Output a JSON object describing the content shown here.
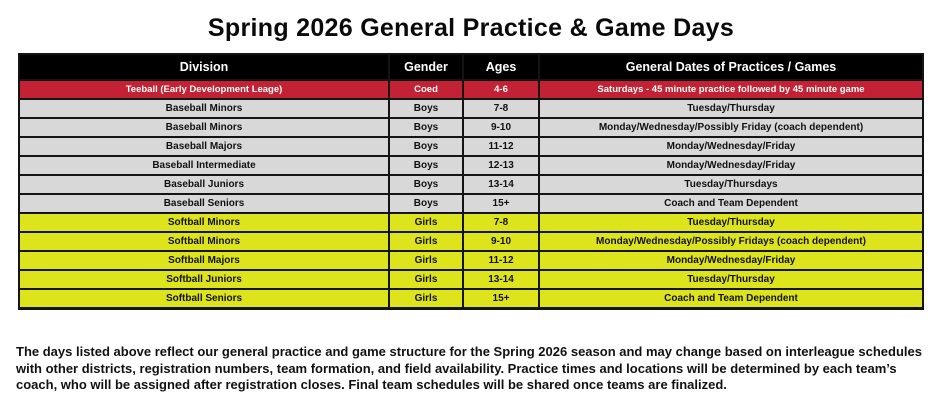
{
  "title": "Spring 2026 General Practice & Game Days",
  "table": {
    "headers": [
      "Division",
      "Gender",
      "Ages",
      "General Dates of Practices / Games"
    ],
    "rows": [
      {
        "division": "Teeball (Early Development Leage)",
        "gender": "Coed",
        "ages": "4-6",
        "dates": "Saturdays - 45 minute practice followed by 45 minute game",
        "theme": "red"
      },
      {
        "division": "Baseball Minors",
        "gender": "Boys",
        "ages": "7-8",
        "dates": "Tuesday/Thursday",
        "theme": "gray"
      },
      {
        "division": "Baseball Minors",
        "gender": "Boys",
        "ages": "9-10",
        "dates": "Monday/Wednesday/Possibly Friday (coach dependent)",
        "theme": "gray"
      },
      {
        "division": "Baseball Majors",
        "gender": "Boys",
        "ages": "11-12",
        "dates": "Monday/Wednesday/Friday",
        "theme": "gray"
      },
      {
        "division": "Baseball Intermediate",
        "gender": "Boys",
        "ages": "12-13",
        "dates": "Monday/Wednesday/Friday",
        "theme": "gray"
      },
      {
        "division": "Baseball Juniors",
        "gender": "Boys",
        "ages": "13-14",
        "dates": "Tuesday/Thursdays",
        "theme": "gray"
      },
      {
        "division": "Baseball Seniors",
        "gender": "Boys",
        "ages": "15+",
        "dates": "Coach and Team Dependent",
        "theme": "gray"
      },
      {
        "division": "Softball Minors",
        "gender": "Girls",
        "ages": "7-8",
        "dates": "Tuesday/Thursday",
        "theme": "yellow"
      },
      {
        "division": "Softball Minors",
        "gender": "Girls",
        "ages": "9-10",
        "dates": "Monday/Wednesday/Possibly Fridays (coach dependent)",
        "theme": "yellow"
      },
      {
        "division": "Softball Majors",
        "gender": "Girls",
        "ages": "11-12",
        "dates": "Monday/Wednesday/Friday",
        "theme": "yellow"
      },
      {
        "division": "Softball Juniors",
        "gender": "Girls",
        "ages": "13-14",
        "dates": "Tuesday/Thursday",
        "theme": "yellow"
      },
      {
        "division": "Softball Seniors",
        "gender": "Girls",
        "ages": "15+",
        "dates": "Coach and Team Dependent",
        "theme": "yellow"
      }
    ]
  },
  "footnote": "The days listed above reflect our general practice and game structure for the Spring 2026 season and may change based on interleague schedules with other districts, registration numbers, team formation, and field availability. Practice times and locations will be determined by each team’s coach, who will be assigned after registration closes. Final team schedules will be shared once teams are finalized.",
  "colors": {
    "header_bg": "#000000",
    "header_text": "#ffffff",
    "red_row_bg": "#c22233",
    "red_row_text": "#ffffff",
    "gray_row_bg": "#d8d8d8",
    "yellow_row_bg": "#dde41b",
    "row_text": "#111111",
    "border": "#141414"
  }
}
